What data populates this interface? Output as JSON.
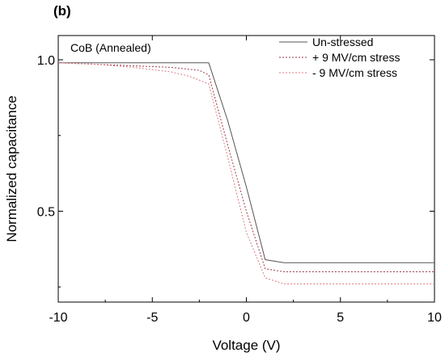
{
  "panel_label": "(b)",
  "chart_data": {
    "type": "line",
    "xlabel": "Voltage (V)",
    "ylabel": "Normalized capacitance",
    "xlim": [
      -10,
      10
    ],
    "ylim": [
      0.2,
      1.08
    ],
    "x_ticks": [
      -10,
      -5,
      0,
      5,
      10
    ],
    "x_tick_labels": [
      "-10",
      "-5",
      "0",
      "5",
      "10"
    ],
    "y_ticks": [
      0.5,
      1.0
    ],
    "y_tick_labels": [
      "0.5",
      "1.0"
    ],
    "annotation": "CoB (Annealed)",
    "grid": false,
    "legend_position": "top-right",
    "series": [
      {
        "name": "Un-stressed",
        "color": "#555555",
        "dash": "solid",
        "x": [
          -10,
          -8,
          -6,
          -4,
          -2,
          -1,
          0,
          1,
          2,
          4,
          6,
          8,
          10
        ],
        "y": [
          0.99,
          0.99,
          0.99,
          0.99,
          0.99,
          0.8,
          0.58,
          0.34,
          0.33,
          0.33,
          0.33,
          0.33,
          0.33
        ]
      },
      {
        "name": "+ 9 MV/cm stress",
        "color": "#9a3a48",
        "dash": "dotted",
        "x": [
          -10,
          -8,
          -6,
          -4,
          -2.5,
          -2,
          -1,
          0,
          1,
          2,
          4,
          6,
          8,
          10
        ],
        "y": [
          0.99,
          0.985,
          0.98,
          0.975,
          0.965,
          0.95,
          0.72,
          0.5,
          0.31,
          0.3,
          0.3,
          0.3,
          0.3,
          0.3
        ]
      },
      {
        "name": "- 9 MV/cm stress",
        "color": "#e07a80",
        "dash": "dotted",
        "x": [
          -10,
          -8,
          -6,
          -4,
          -3,
          -2,
          -1,
          0,
          1,
          2,
          4,
          6,
          8,
          10
        ],
        "y": [
          0.99,
          0.985,
          0.975,
          0.96,
          0.945,
          0.92,
          0.68,
          0.43,
          0.28,
          0.26,
          0.26,
          0.26,
          0.26,
          0.26
        ]
      }
    ]
  }
}
